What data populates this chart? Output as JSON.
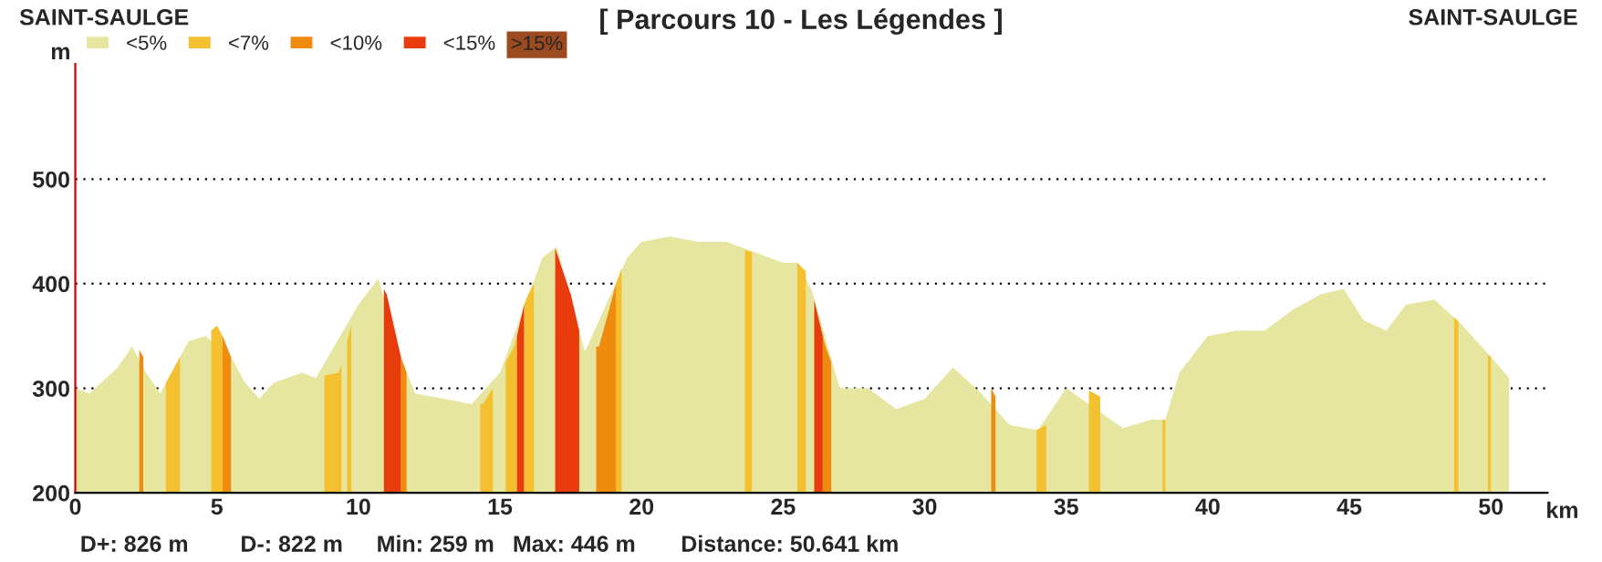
{
  "chart_data": {
    "type": "area",
    "title": "[ Parcours 10 - Les Légendes ]",
    "xlabel": "km",
    "ylabel": "m",
    "annotations": [
      "SAINT-SAULGE",
      "SAINT-SAULGE",
      "D+: 826 m",
      "D-: 822 m",
      "Min: 259 m",
      "Max: 446 m",
      "Distance: 50.641 km",
      ">15%"
    ],
    "x": [
      0,
      0.5,
      1.5,
      2,
      2.5,
      3,
      3.5,
      4,
      4.6,
      5,
      5.5,
      6,
      6.5,
      7,
      8,
      8.5,
      9.3,
      10,
      10.7,
      11,
      11.5,
      12,
      13,
      14,
      14.4,
      15,
      15.5,
      16,
      16.5,
      17,
      17.5,
      18,
      18.5,
      19,
      19.5,
      20,
      21,
      22,
      23,
      24,
      25,
      25.5,
      26,
      26.5,
      27,
      28,
      29,
      30,
      31,
      32,
      33,
      34,
      35,
      36,
      37,
      38,
      38.5,
      39,
      40,
      41,
      42,
      43,
      44,
      44.8,
      45.5,
      46.3,
      47,
      48,
      49,
      50,
      50.64
    ],
    "series": [
      {
        "name": "<5%",
        "color": "#e6e6a0",
        "values": [
          300,
          295,
          320,
          340,
          315,
          295,
          null,
          345,
          350,
          null,
          330,
          305,
          290,
          305,
          315,
          310,
          null,
          380,
          405,
          null,
          330,
          295,
          290,
          285,
          null,
          315,
          null,
          null,
          425,
          435,
          null,
          335,
          null,
          null,
          425,
          440,
          445,
          440,
          440,
          430,
          420,
          420,
          395,
          null,
          300,
          300,
          280,
          290,
          320,
          295,
          265,
          260,
          300,
          null,
          262,
          270,
          270,
          315,
          350,
          355,
          355,
          375,
          390,
          395,
          365,
          355,
          380,
          385,
          360,
          330,
          310
        ]
      },
      {
        "name": "<7%",
        "color": "#f4c030",
        "x": [
          3.2,
          3.5,
          3.7
        ],
        "values": [
          305,
          320,
          330
        ]
      },
      {
        "color": "#f4c030",
        "x": [
          4.8,
          5,
          5.2
        ],
        "values": [
          355,
          360,
          350
        ]
      },
      {
        "color": "#f4c030",
        "x": [
          8.8,
          9.3,
          9.4
        ],
        "values": [
          312,
          315,
          322
        ]
      },
      {
        "color": "#f4c030",
        "x": [
          9.6,
          9.75
        ],
        "values": [
          345,
          360
        ]
      },
      {
        "color": "#f4c030",
        "x": [
          14.3,
          14.4,
          14.75
        ],
        "values": [
          285,
          285,
          300
        ]
      },
      {
        "color": "#f4c030",
        "x": [
          15.2,
          15.5,
          15.6
        ],
        "values": [
          325,
          340,
          350
        ]
      },
      {
        "color": "#f4c030",
        "x": [
          15.85,
          16,
          16.2
        ],
        "values": [
          380,
          390,
          400
        ]
      },
      {
        "color": "#f4c030",
        "x": [
          19.1,
          19.3
        ],
        "values": [
          400,
          415
        ]
      },
      {
        "color": "#f4c030",
        "x": [
          23.65,
          23.9
        ],
        "values": [
          432,
          430
        ]
      },
      {
        "color": "#f4c030",
        "x": [
          25.5,
          25.8
        ],
        "values": [
          420,
          412
        ]
      },
      {
        "color": "#f4c030",
        "x": [
          33.95,
          34.3
        ],
        "values": [
          260,
          265
        ]
      },
      {
        "color": "#f4c030",
        "x": [
          35.8,
          36,
          36.2
        ],
        "values": [
          298,
          295,
          292
        ]
      },
      {
        "color": "#f4c030",
        "x": [
          38.4,
          38.5
        ],
        "values": [
          270,
          270
        ]
      },
      {
        "color": "#f4c030",
        "x": [
          48.7,
          48.85
        ],
        "values": [
          368,
          364
        ]
      },
      {
        "color": "#f4c030",
        "x": [
          49.9,
          50.0
        ],
        "values": [
          332,
          330
        ]
      },
      {
        "name": "<10%",
        "color": "#ef8c10",
        "x": [
          2.26,
          2.4
        ],
        "values": [
          337,
          330
        ]
      },
      {
        "color": "#ef8c10",
        "x": [
          5.2,
          5.5
        ],
        "values": [
          350,
          330
        ]
      },
      {
        "color": "#ef8c10",
        "x": [
          11.5,
          11.7
        ],
        "values": [
          330,
          315
        ]
      },
      {
        "color": "#ef8c10",
        "x": [
          18.4,
          18.5,
          19,
          19.1
        ],
        "values": [
          340,
          340,
          390,
          400
        ]
      },
      {
        "color": "#ef8c10",
        "x": [
          26.4,
          26.5,
          26.7
        ],
        "values": [
          350,
          340,
          325
        ]
      },
      {
        "color": "#ef8c10",
        "x": [
          32.35,
          32.5
        ],
        "values": [
          300,
          292
        ]
      },
      {
        "name": "<15%",
        "color": "#e83c0c",
        "x": [
          10.9,
          11,
          11.5
        ],
        "values": [
          395,
          390,
          330
        ]
      },
      {
        "color": "#e83c0c",
        "x": [
          15.6,
          15.85
        ],
        "values": [
          350,
          380
        ]
      },
      {
        "color": "#e83c0c",
        "x": [
          16.95,
          17.5,
          17.8
        ],
        "values": [
          434,
          390,
          355
        ]
      },
      {
        "color": "#e83c0c",
        "x": [
          26.1,
          26.4
        ],
        "values": [
          384,
          350
        ]
      }
    ],
    "xlim": [
      0,
      52
    ],
    "xticks": [
      0,
      5,
      10,
      15,
      20,
      25,
      30,
      35,
      40,
      45,
      50
    ],
    "ylim": [
      200,
      610
    ],
    "yticks": [
      200,
      300,
      400,
      500
    ],
    "grid": "y",
    "legend": "top left"
  }
}
